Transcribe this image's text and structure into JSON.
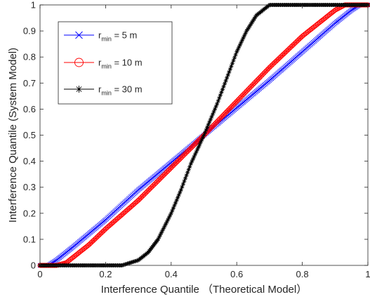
{
  "chart_data": {
    "type": "line",
    "title": "",
    "xlabel": "Interference Quantile （Theoretical Model）",
    "ylabel": "Interference Quantile (System Model)",
    "xlim": [
      0,
      1
    ],
    "ylim": [
      0,
      1
    ],
    "xticks": [
      "0",
      "0.2",
      "0.4",
      "0.6",
      "0.8",
      "1"
    ],
    "yticks": [
      "0",
      "0.1",
      "0.2",
      "0.3",
      "0.4",
      "0.5",
      "0.6",
      "0.7",
      "0.8",
      "0.9",
      "1"
    ],
    "grid": false,
    "legend_position": "top-left",
    "series": [
      {
        "name": "r_min = 5 m",
        "legend_main": "r",
        "legend_sub": "min",
        "legend_rest": " = 5 m",
        "color": "#0000ff",
        "marker": "x",
        "x": [
          0,
          0.025,
          0.05,
          0.1,
          0.2,
          0.3,
          0.4,
          0.5,
          0.6,
          0.7,
          0.8,
          0.9,
          0.95,
          0.975,
          1
        ],
        "y": [
          0,
          0,
          0.02,
          0.07,
          0.175,
          0.29,
          0.395,
          0.5,
          0.605,
          0.71,
          0.82,
          0.93,
          0.98,
          1,
          1
        ]
      },
      {
        "name": "r_min = 10 m",
        "legend_main": "r",
        "legend_sub": "min",
        "legend_rest": " = 10 m",
        "color": "#ff0000",
        "marker": "o",
        "x": [
          0,
          0.05,
          0.08,
          0.1,
          0.15,
          0.2,
          0.3,
          0.4,
          0.5,
          0.6,
          0.7,
          0.8,
          0.85,
          0.9,
          0.93,
          1
        ],
        "y": [
          0,
          0,
          0.01,
          0.03,
          0.08,
          0.14,
          0.25,
          0.375,
          0.5,
          0.63,
          0.76,
          0.88,
          0.93,
          0.98,
          1,
          1
        ]
      },
      {
        "name": "r_min = 30 m",
        "legend_main": "r",
        "legend_sub": "min",
        "legend_rest": " = 30 m",
        "color": "#000000",
        "marker": "*",
        "x": [
          0,
          0.25,
          0.3,
          0.33,
          0.36,
          0.4,
          0.43,
          0.46,
          0.5,
          0.54,
          0.57,
          0.6,
          0.63,
          0.66,
          0.68,
          0.7,
          0.75,
          1
        ],
        "y": [
          0,
          0,
          0.02,
          0.05,
          0.1,
          0.2,
          0.29,
          0.39,
          0.5,
          0.62,
          0.72,
          0.82,
          0.9,
          0.96,
          0.98,
          1,
          1,
          1
        ]
      }
    ]
  }
}
